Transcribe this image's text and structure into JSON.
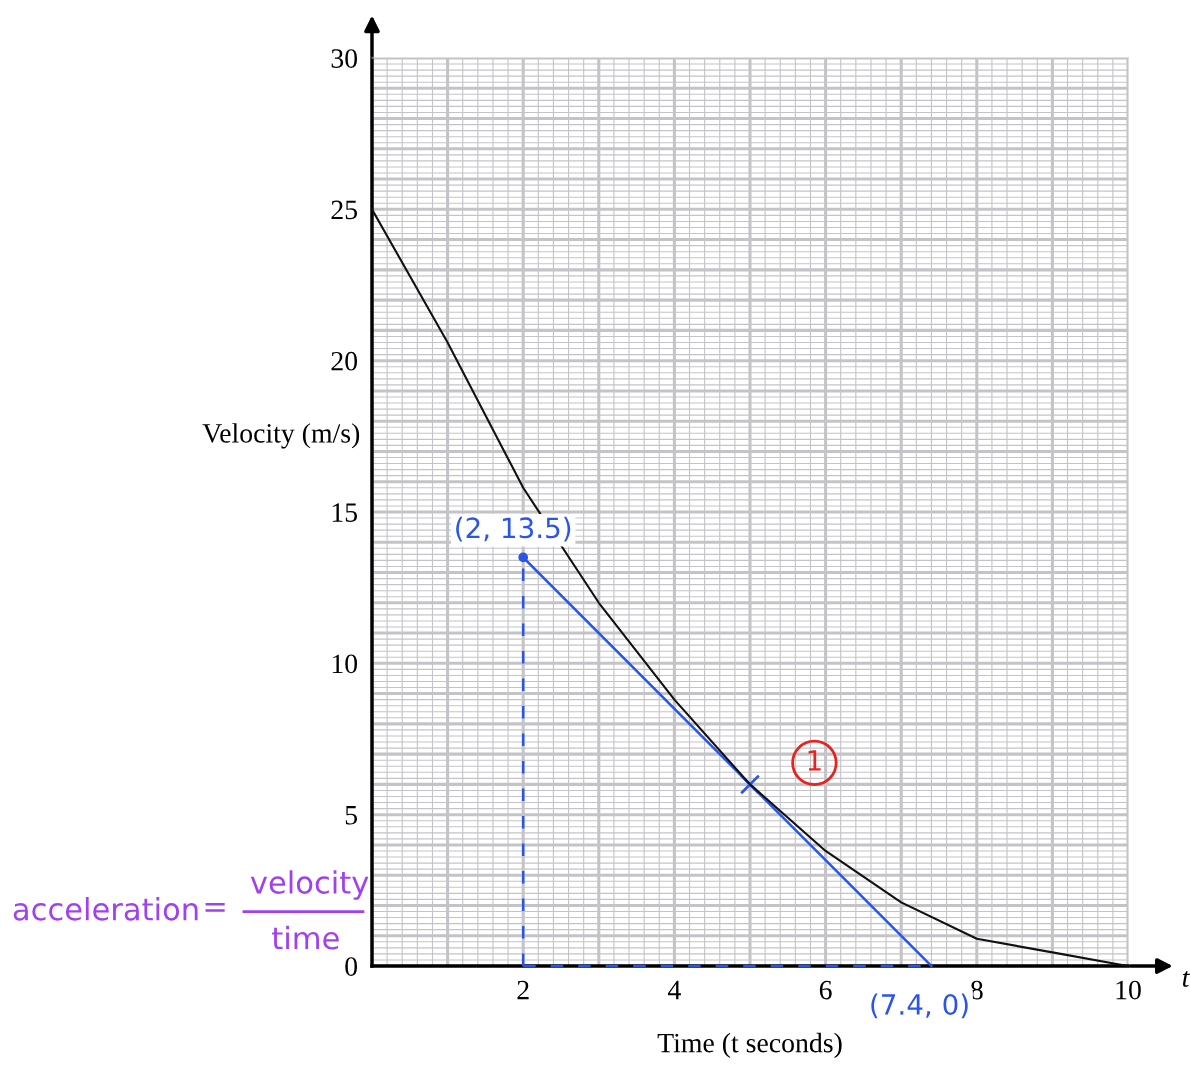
{
  "chart_data": {
    "type": "line",
    "xlabel": "Time (t seconds)",
    "ylabel": "Velocity (m/s)",
    "xlim": [
      0,
      10
    ],
    "ylim": [
      0,
      30
    ],
    "xticks": [
      2,
      4,
      6,
      8,
      10
    ],
    "yticks": [
      0,
      5,
      10,
      15,
      20,
      25,
      30
    ],
    "grid": true,
    "series": [
      {
        "color": "#111111",
        "x": [
          0,
          1,
          2,
          3,
          4,
          5,
          6,
          7,
          8,
          9,
          10
        ],
        "values": [
          25,
          20.6,
          15.8,
          12,
          8.8,
          6,
          3.8,
          2.1,
          0.9,
          0.45,
          0
        ]
      },
      {
        "color": "#2a55e8",
        "x": [
          2,
          7.4
        ],
        "values": [
          13.5,
          0
        ],
        "marker": "circle"
      },
      {
        "color": "#2a55e8",
        "x": [
          2,
          2
        ],
        "values": [
          0,
          13.5
        ],
        "line_style": "dashed"
      },
      {
        "color": "#2a55e8",
        "x": [
          2,
          7.4
        ],
        "values": [
          0,
          0
        ],
        "line_style": "dashed"
      },
      {
        "type": "scatter",
        "color": "#2a55e8",
        "x": [
          5
        ],
        "values": [
          6
        ],
        "marker": "cross"
      }
    ],
    "annotations": [
      {
        "text": "(2, 13.5)",
        "x": 2,
        "y": 13.5
      },
      {
        "text": "(7.4, 0)",
        "x": 7.4,
        "y": 0
      },
      {
        "text": "1",
        "x": 5,
        "y": 6
      },
      "t",
      "acceleration",
      "=",
      "velocity",
      "time"
    ]
  }
}
